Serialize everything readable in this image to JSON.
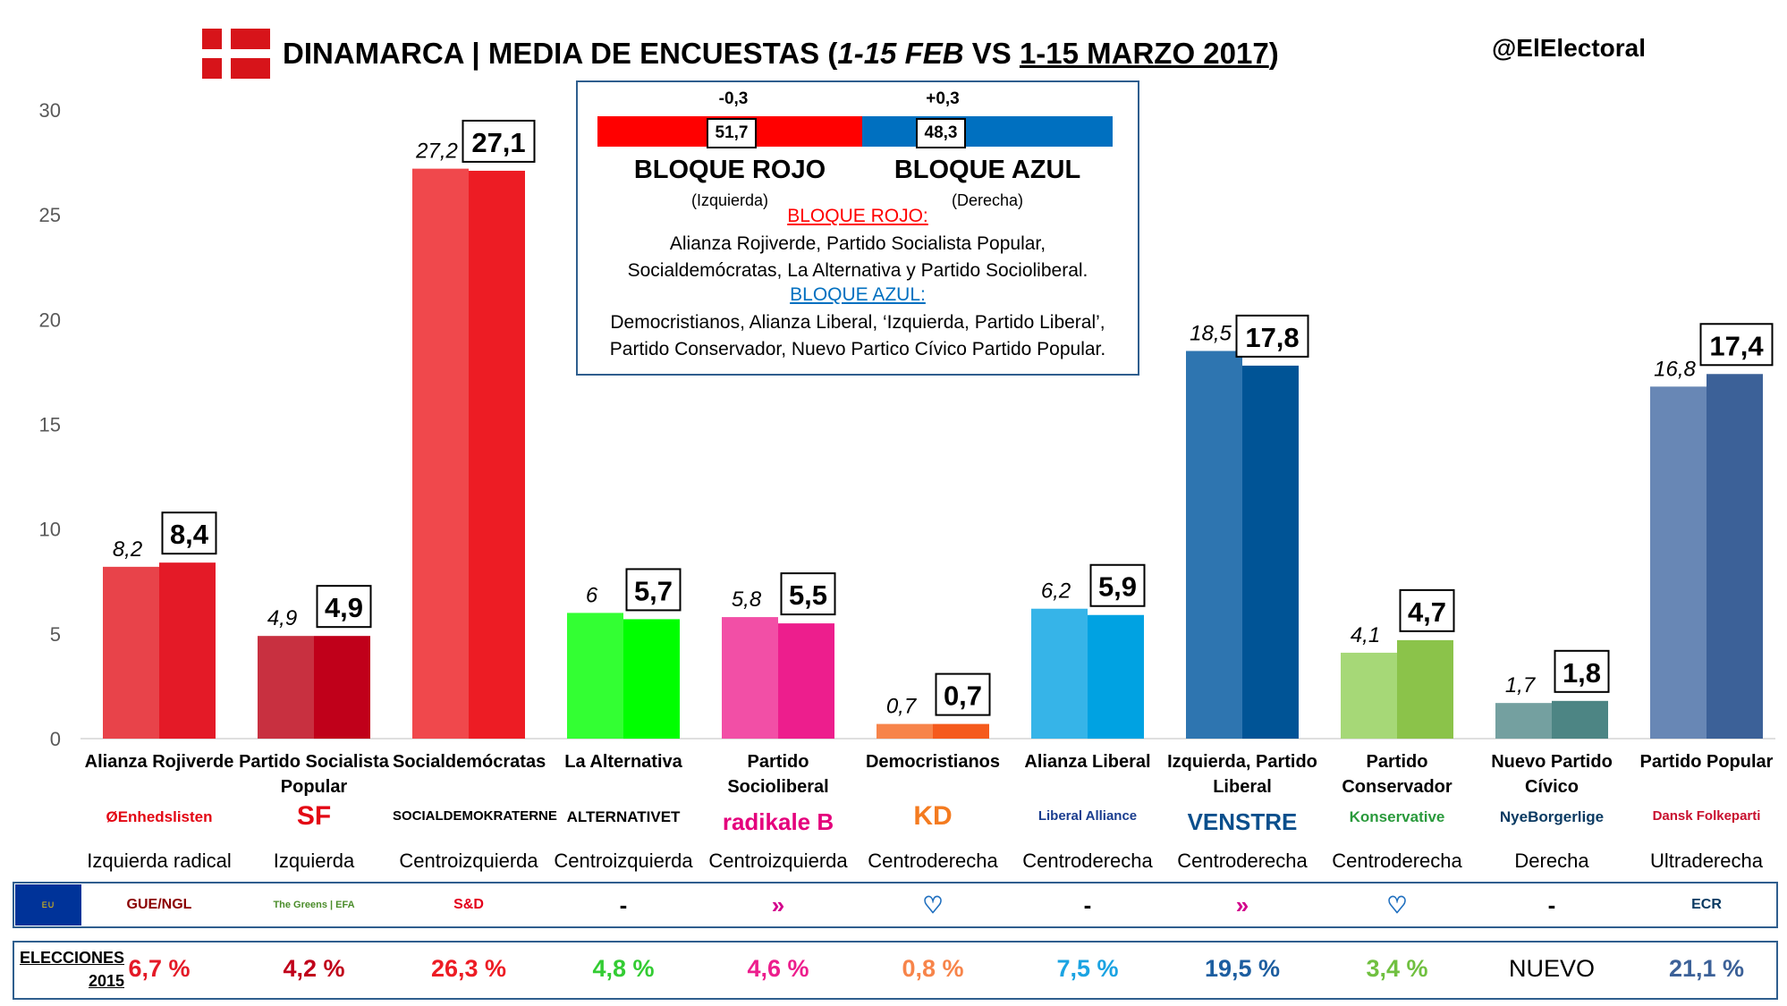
{
  "header": {
    "title_main": "DINAMARCA | MEDIA DE ENCUESTAS (",
    "title_feb": "1-15 FEB",
    "title_vs": " VS ",
    "title_mar": "1-15 MARZO 2017",
    "title_end": ")",
    "handle": "@ElElectoral"
  },
  "colors": {
    "flag": "#d7141a",
    "bloque_rojo": "#ff0000",
    "bloque_azul": "#0070c0",
    "border": "#2f5e8e"
  },
  "bloques": {
    "rojo": {
      "value": "51,7",
      "change": "-0,3",
      "name": "BLOQUE ROJO",
      "sub": "(Izquierda)"
    },
    "azul": {
      "value": "48,3",
      "change": "+0,3",
      "name": "BLOQUE AZUL",
      "sub": "(Derecha)"
    },
    "rojo_head": "BLOQUE ROJO:",
    "rojo_text_1": "Alianza Rojiverde, Partido Socialista Popular,",
    "rojo_text_2": "Socialdemócratas, La Alternativa y Partido Socioliberal.",
    "azul_head": "BLOQUE AZUL:",
    "azul_text_1": "Democristianos, Alianza Liberal, ‘Izquierda, Partido Liberal’,",
    "azul_text_2": "Partido Conservador, Nuevo Partico Cívico Partido Popular."
  },
  "chart_data": {
    "type": "bar",
    "title": "DINAMARCA | MEDIA DE ENCUESTAS (1-15 FEB VS 1-15 MARZO 2017)",
    "ylim": [
      0,
      30
    ],
    "yticks": [
      0,
      5,
      10,
      15,
      20,
      25,
      30
    ],
    "categories": [
      "Alianza Rojiverde",
      "Partido Socialista Popular",
      "Socialdemócratas",
      "La Alternativa",
      "Partido Socioliberal",
      "Democristianos",
      "Alianza Liberal",
      "Izquierda, Partido Liberal",
      "Partido Conservador",
      "Nuevo Partido Cívico",
      "Partido Popular"
    ],
    "series": [
      {
        "values": [
          8.2,
          4.9,
          27.2,
          6,
          5.8,
          0.7,
          6.2,
          18.5,
          4.1,
          1.7,
          16.8
        ],
        "labels": [
          "8,2",
          "4,9",
          "27,2",
          "6",
          "5,8",
          "0,7",
          "6,2",
          "18,5",
          "4,1",
          "1,7",
          "16,8"
        ]
      },
      {
        "values": [
          8.4,
          4.9,
          27.1,
          5.7,
          5.5,
          0.7,
          5.9,
          17.8,
          4.7,
          1.8,
          17.4
        ],
        "labels": [
          "8,4",
          "4,9",
          "27,1",
          "5,7",
          "5,5",
          "0,7",
          "5,9",
          "17,8",
          "4,7",
          "1,8",
          "17,4"
        ]
      }
    ],
    "colors_feb": [
      "#e8434a",
      "#c83040",
      "#f0484c",
      "#33ff33",
      "#f24fa6",
      "#f7844a",
      "#36b4e8",
      "#2e75b0",
      "#a6d877",
      "#74a0a0",
      "#6887b5"
    ],
    "colors_mar": [
      "#e41a27",
      "#c0001a",
      "#ed1c24",
      "#00ff00",
      "#ed1e8d",
      "#f55a1c",
      "#00a2e2",
      "#005496",
      "#8bc34a",
      "#4d8584",
      "#3c6198"
    ],
    "grid": false
  },
  "parties": [
    {
      "name": "Alianza Rojiverde",
      "logo": "ØEnhedslisten",
      "logo_color": "#e30613",
      "ideology": "Izquierda radical",
      "group": "GUE/NGL",
      "group_color": "#8b0000",
      "result": "6,7 %",
      "result_color": "#e41a27"
    },
    {
      "name": "Partido Socialista Popular",
      "logo": "SF",
      "logo_color": "#e30613",
      "ideology": "Izquierda",
      "group": "The Greens | EFA",
      "group_color": "#4a8c2a",
      "result": "4,2 %",
      "result_color": "#c0001a"
    },
    {
      "name": "Socialdemócratas",
      "logo": "SOCIALDEMOKRATERNE",
      "logo_color": "#000000",
      "ideology": "Centroizquierda",
      "group": "S&D",
      "group_color": "#e3001b",
      "result": "26,3 %",
      "result_color": "#ed1c24"
    },
    {
      "name": "La Alternativa",
      "logo": "ALTERNATIVET",
      "logo_color": "#000000",
      "ideology": "Centroizquierda",
      "group": "-",
      "group_color": "#000000",
      "result": "4,8 %",
      "result_color": "#33cc33"
    },
    {
      "name": "Partido Socioliberal",
      "logo": "radikale B",
      "logo_color": "#e4007c",
      "ideology": "Centroizquierda",
      "group": "»",
      "group_color": "#d3008c",
      "result": "4,6 %",
      "result_color": "#ed1e8d"
    },
    {
      "name": "Democristianos",
      "logo": "KD",
      "logo_color": "#f47b20",
      "ideology": "Centroderecha",
      "group": "♡",
      "group_color": "#1f6fbf",
      "result": "0,8 %",
      "result_color": "#f7844a"
    },
    {
      "name": "Alianza Liberal",
      "logo": "Liberal Alliance",
      "logo_color": "#1a3d8f",
      "ideology": "Centroderecha",
      "group": "-",
      "group_color": "#000000",
      "result": "7,5 %",
      "result_color": "#1aa3e2"
    },
    {
      "name": "Izquierda, Partido Liberal",
      "logo": "VENSTRE",
      "logo_color": "#0b4f8c",
      "ideology": "Centroderecha",
      "group": "»",
      "group_color": "#d3008c",
      "result": "19,5 %",
      "result_color": "#1d5ea0"
    },
    {
      "name": "Partido Conservador",
      "logo": "Konservative",
      "logo_color": "#2a9a3c",
      "ideology": "Centroderecha",
      "group": "♡",
      "group_color": "#1f6fbf",
      "result": "3,4 %",
      "result_color": "#70c040"
    },
    {
      "name": "Nuevo Partido Cívico",
      "logo": "NyeBorgerlige",
      "logo_color": "#0a3a62",
      "ideology": "Derecha",
      "group": "-",
      "group_color": "#000000",
      "result": "NUEVO",
      "result_color": "#000000"
    },
    {
      "name": "Partido Popular",
      "logo": "Dansk Folkeparti",
      "logo_color": "#c8102e",
      "ideology": "Ultraderecha",
      "group": "ECR",
      "group_color": "#0a3a62",
      "result": "21,1 %",
      "result_color": "#3c6198"
    }
  ],
  "eu_label": "EU",
  "elections_label_1": "ELECCIONES",
  "elections_label_2": "2015"
}
